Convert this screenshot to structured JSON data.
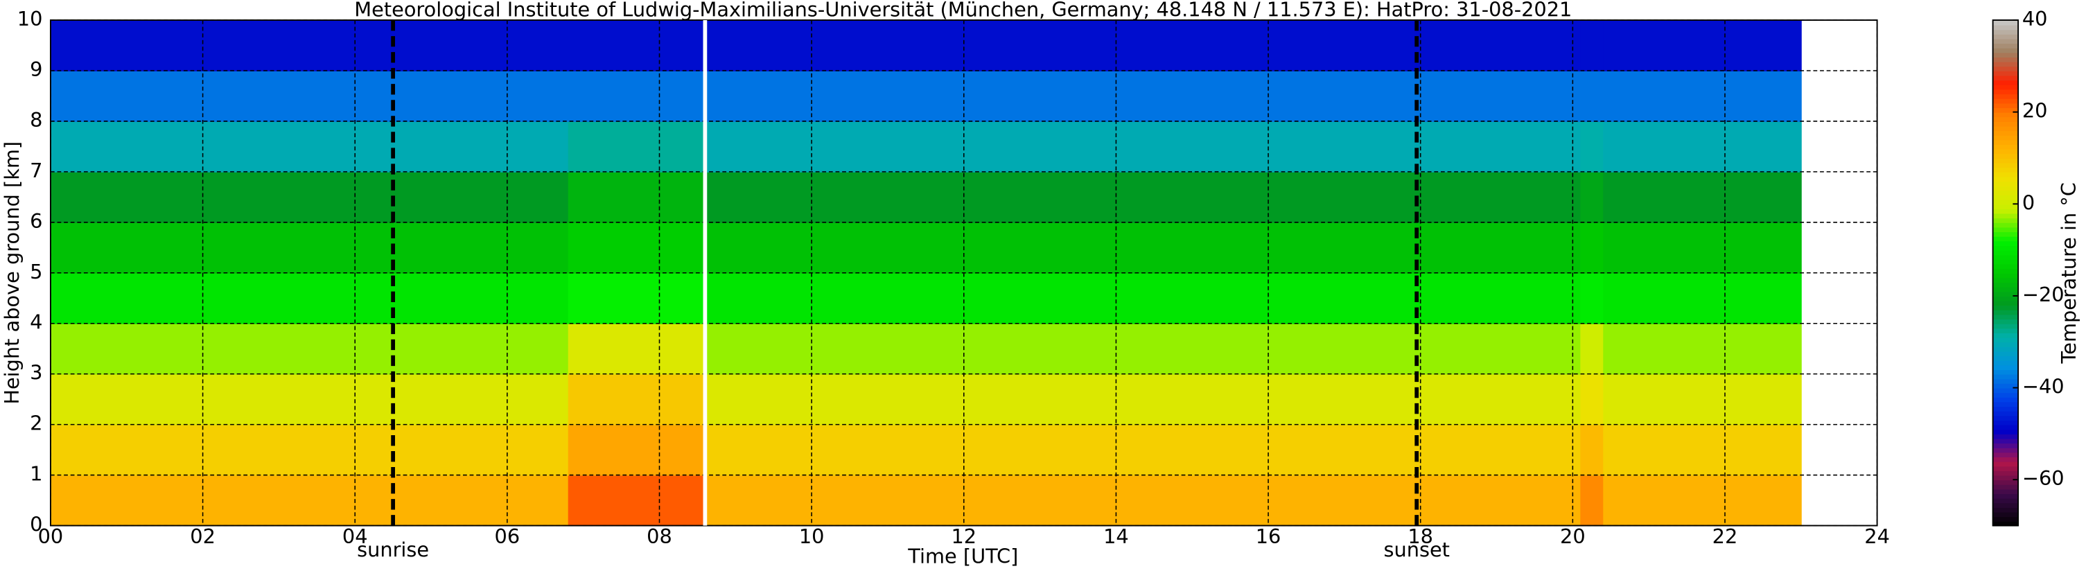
{
  "chart_data": {
    "type": "heatmap",
    "title": "Meteorological Institute of Ludwig-Maximilians-Universität (München, Germany; 48.148 N / 11.573 E):    HatPro: 31-08-2021",
    "x_label": "Time [UTC]",
    "y_label": "Height above ground [km]",
    "xlim": [
      0,
      24
    ],
    "xticks": [
      {
        "value": 0,
        "label": "00"
      },
      {
        "value": 2,
        "label": "02"
      },
      {
        "value": 4,
        "label": "04"
      },
      {
        "value": 6,
        "label": "06"
      },
      {
        "value": 8,
        "label": "08"
      },
      {
        "value": 10,
        "label": "10"
      },
      12,
      14,
      16,
      18,
      20,
      22,
      24
    ],
    "ylim": [
      0,
      10
    ],
    "yticks": [
      0,
      1,
      2,
      3,
      4,
      5,
      6,
      7,
      8,
      9,
      10
    ],
    "grid": true,
    "x_edges": [
      0,
      6.8,
      8.6,
      20.1,
      20.4,
      23
    ],
    "y_edges": [
      0,
      1,
      2,
      3,
      4,
      5,
      6,
      7,
      8,
      9,
      10
    ],
    "z": [
      [
        12,
        8,
        2,
        -3,
        -10,
        -16,
        -22,
        -30,
        -38,
        -48
      ],
      [
        22,
        14,
        9,
        2,
        -8,
        -14,
        -18,
        -28,
        -38,
        -48
      ],
      [
        12,
        8,
        2,
        -3,
        -10,
        -16,
        -22,
        -30,
        -38,
        -48
      ],
      [
        18,
        11,
        5,
        0,
        -9,
        -15,
        -20,
        -29,
        -38,
        -48
      ],
      [
        12,
        8,
        2,
        -3,
        -10,
        -16,
        -22,
        -30,
        -38,
        -48
      ]
    ],
    "vlines": [
      {
        "x": 4.5,
        "label": "sunrise",
        "color": "#000000",
        "dashed": true
      },
      {
        "x": 8.6,
        "color": "#ffffff",
        "dashed": false
      },
      {
        "x": 17.95,
        "label": "sunset",
        "color": "#000000",
        "dashed": true
      }
    ],
    "colorbar": {
      "label": "Temperature in °C",
      "zlim": [
        -70,
        40
      ],
      "ticks": [
        {
          "value": -60,
          "label": "−60"
        },
        {
          "value": -40,
          "label": "−40"
        },
        {
          "value": -20,
          "label": "−20"
        },
        0,
        20,
        40
      ],
      "colormap": [
        "#000000",
        "#3a0a4a",
        "#b0154a",
        "#0000c8",
        "#0040e8",
        "#0090e0",
        "#00b0a8",
        "#009a20",
        "#00c800",
        "#00f000",
        "#c8f000",
        "#f0e000",
        "#ffb000",
        "#ff8000",
        "#ff2000",
        "#a08060",
        "#c8c8c8"
      ]
    }
  }
}
